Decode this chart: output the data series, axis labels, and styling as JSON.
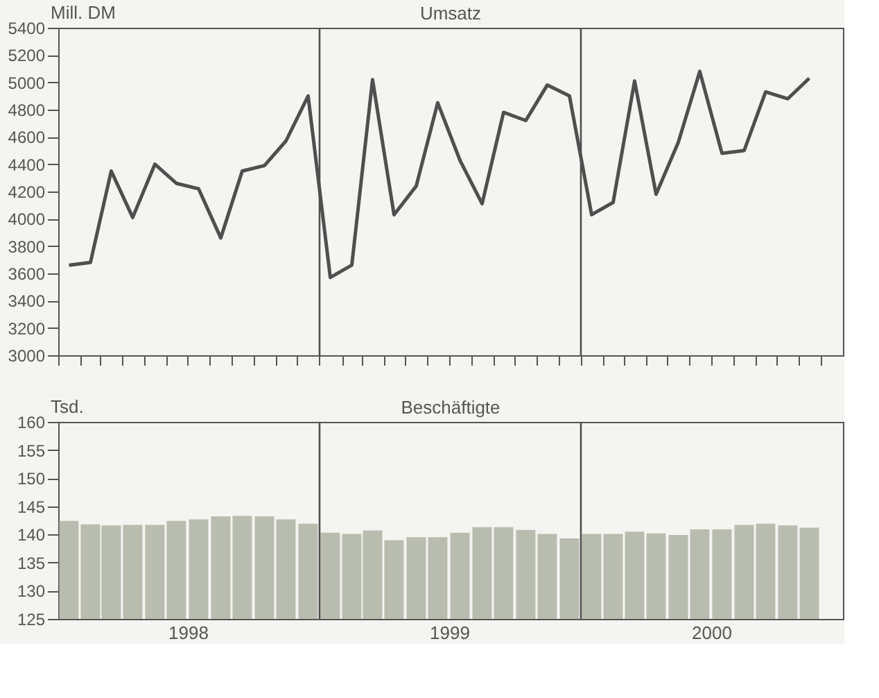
{
  "chart_data": [
    {
      "type": "line",
      "title": "Umsatz",
      "ylabel": "Mill. DM",
      "color": "#4f4f4f",
      "x": [
        "1998-01-16",
        "1998-02-15",
        "1998-03-16",
        "1998-04-15",
        "1998-05-16",
        "1998-06-15",
        "1998-07-16",
        "1998-08-16",
        "1998-09-15",
        "1998-10-16",
        "1998-11-15",
        "1998-12-16",
        "1999-01-16",
        "1999-02-15",
        "1999-03-16",
        "1999-04-15",
        "1999-05-16",
        "1999-06-15",
        "1999-07-16",
        "1999-08-16",
        "1999-09-15",
        "1999-10-16",
        "1999-11-15",
        "1999-12-16",
        "2000-01-16",
        "2000-02-15",
        "2000-03-16",
        "2000-04-15",
        "2000-05-16",
        "2000-06-15",
        "2000-07-16",
        "2000-08-16",
        "2000-09-15",
        "2000-10-16",
        "2000-11-15"
      ],
      "values": [
        3660,
        3680,
        4350,
        4010,
        4400,
        4260,
        4220,
        3860,
        4350,
        4390,
        4570,
        4900,
        3570,
        3660,
        5020,
        4030,
        4240,
        4850,
        4430,
        4110,
        4780,
        4720,
        4980,
        4900,
        4030,
        4120,
        5010,
        4180,
        4560,
        5080,
        4480,
        4500,
        4930,
        4880,
        5030
      ],
      "xlim": [
        "1998-01",
        "2001-01"
      ],
      "xticks": [
        {
          "value": "1998-01",
          "label": null
        },
        {
          "value": "1998-02",
          "label": null
        },
        {
          "value": "1998-03",
          "label": null
        },
        {
          "value": "1998-04",
          "label": null
        },
        {
          "value": "1998-05",
          "label": null
        },
        {
          "value": "1998-06",
          "label": null
        },
        {
          "value": "1998-07",
          "label": null
        },
        {
          "value": "1998-08",
          "label": null
        },
        {
          "value": "1998-09",
          "label": null
        },
        {
          "value": "1998-10",
          "label": null
        },
        {
          "value": "1998-11",
          "label": null
        },
        {
          "value": "1998-12",
          "label": null
        },
        {
          "value": "1999-01",
          "label": null
        },
        {
          "value": "1999-02",
          "label": null
        },
        {
          "value": "1999-03",
          "label": null
        },
        {
          "value": "1999-04",
          "label": null
        },
        {
          "value": "1999-05",
          "label": null
        },
        {
          "value": "1999-06",
          "label": null
        },
        {
          "value": "1999-07",
          "label": null
        },
        {
          "value": "1999-08",
          "label": null
        },
        {
          "value": "1999-09",
          "label": null
        },
        {
          "value": "1999-10",
          "label": null
        },
        {
          "value": "1999-11",
          "label": null
        },
        {
          "value": "1999-12",
          "label": null
        },
        {
          "value": "2000-01",
          "label": null
        },
        {
          "value": "2000-02",
          "label": null
        },
        {
          "value": "2000-03",
          "label": null
        },
        {
          "value": "2000-04",
          "label": null
        },
        {
          "value": "2000-05",
          "label": null
        },
        {
          "value": "2000-06",
          "label": null
        },
        {
          "value": "2000-07",
          "label": null
        },
        {
          "value": "2000-08",
          "label": null
        },
        {
          "value": "2000-09",
          "label": null
        },
        {
          "value": "2000-10",
          "label": null
        },
        {
          "value": "2000-11",
          "label": null
        },
        {
          "value": "2000-12",
          "label": null
        }
      ],
      "ylim": [
        3000,
        5400
      ],
      "yticks": [
        3000,
        3200,
        3400,
        3600,
        3800,
        4000,
        4200,
        4400,
        4600,
        4800,
        5000,
        5200,
        5400
      ],
      "tick_labels": "y",
      "grid": false,
      "ref_lines": [
        {
          "axis": "x",
          "value": "1999-01",
          "color": "#4f4f4f"
        },
        {
          "axis": "x",
          "value": "2000-01",
          "color": "#4f4f4f"
        }
      ]
    },
    {
      "type": "bar",
      "title": "Beschäftigte",
      "ylabel": "Tsd.",
      "color": "#b9bdb0",
      "x": [
        "1998-01-16",
        "1998-02-15",
        "1998-03-16",
        "1998-04-15",
        "1998-05-16",
        "1998-06-15",
        "1998-07-16",
        "1998-08-16",
        "1998-09-15",
        "1998-10-16",
        "1998-11-15",
        "1998-12-16",
        "1999-01-16",
        "1999-02-15",
        "1999-03-16",
        "1999-04-15",
        "1999-05-16",
        "1999-06-15",
        "1999-07-16",
        "1999-08-16",
        "1999-09-15",
        "1999-10-16",
        "1999-11-15",
        "1999-12-16",
        "2000-01-16",
        "2000-02-15",
        "2000-03-16",
        "2000-04-15",
        "2000-05-16",
        "2000-06-15",
        "2000-07-16",
        "2000-08-16",
        "2000-09-15",
        "2000-10-16",
        "2000-11-15"
      ],
      "values": [
        142.4,
        141.8,
        141.6,
        141.7,
        141.7,
        142.4,
        142.7,
        143.2,
        143.3,
        143.2,
        142.7,
        141.9,
        140.3,
        140.1,
        140.7,
        139.0,
        139.5,
        139.5,
        140.3,
        141.3,
        141.3,
        140.8,
        140.1,
        139.3,
        140.1,
        140.1,
        140.5,
        140.2,
        139.9,
        140.9,
        140.9,
        141.7,
        141.9,
        141.6,
        141.2
      ],
      "xlim": [
        "1998-01",
        "2001-01"
      ],
      "xticks": [
        {
          "value": "1998-07",
          "label": "1998"
        },
        {
          "value": "1999-07",
          "label": "1999"
        },
        {
          "value": "2000-07",
          "label": "2000"
        }
      ],
      "ylim": [
        125,
        160
      ],
      "yticks": [
        125,
        130,
        135,
        140,
        145,
        150,
        155,
        160
      ],
      "grid": false,
      "ref_lines": [
        {
          "axis": "x",
          "value": "1999-01",
          "color": "#4f4f4f"
        },
        {
          "axis": "x",
          "value": "2000-01",
          "color": "#4f4f4f"
        }
      ]
    }
  ]
}
